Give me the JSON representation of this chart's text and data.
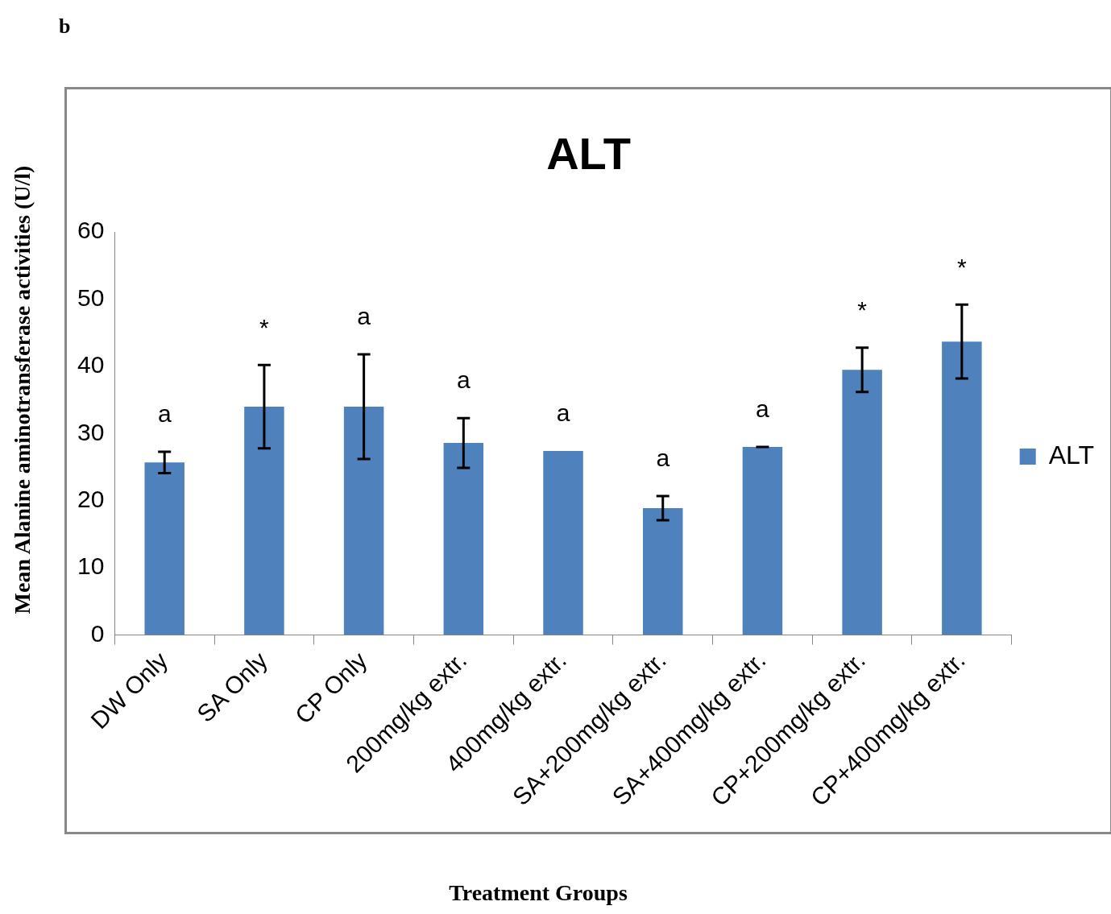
{
  "chart_data": {
    "type": "bar",
    "title": "ALT",
    "xlabel": "Treatment Groups",
    "ylabel": "Mean Alanine aminotransferase activities (U/l)",
    "categories": [
      "DW Only",
      "SA Only",
      "CP Only",
      "200mg/kg extr.",
      "400mg/kg extr.",
      "SA+200mg/kg extr.",
      "SA+400mg/kg extr.",
      "CP+200mg/kg extr.",
      "CP+400mg/kg extr."
    ],
    "series": [
      {
        "name": "ALT",
        "color": "#4f81bd",
        "values": [
          25.7,
          34.0,
          34.0,
          28.6,
          27.4,
          18.9,
          28.0,
          39.5,
          43.7
        ],
        "errors": [
          1.6,
          6.2,
          7.8,
          3.7,
          null,
          1.8,
          0,
          3.3,
          5.5
        ]
      }
    ],
    "ylim": [
      0,
      60
    ],
    "yticks": [
      0,
      10,
      20,
      30,
      40,
      50,
      60
    ],
    "legend": "right",
    "annotations": [
      "b",
      "a",
      "*",
      "a",
      "a",
      "a",
      "a",
      "a",
      "*",
      "*"
    ]
  }
}
